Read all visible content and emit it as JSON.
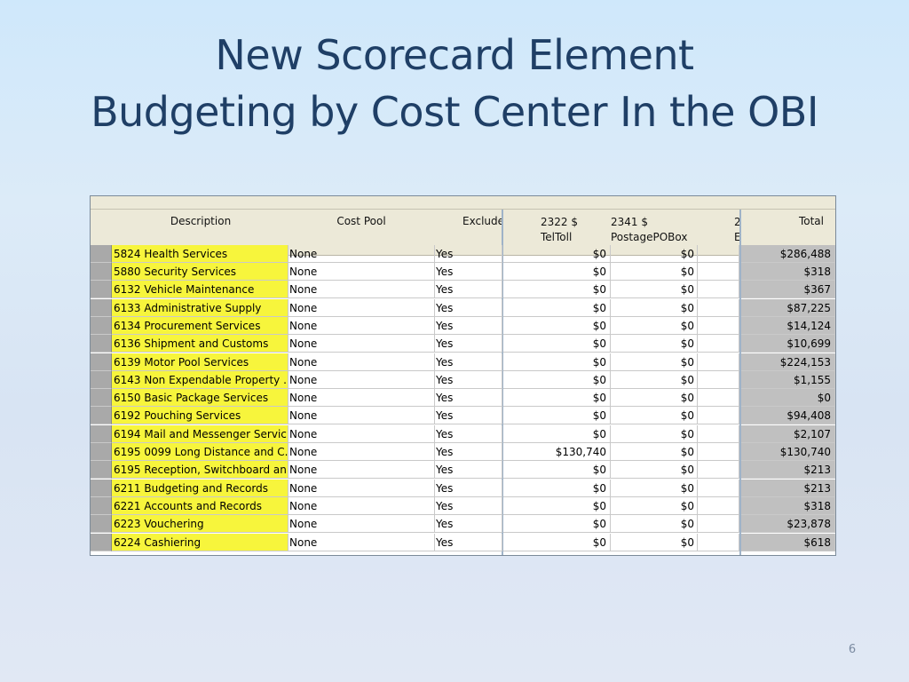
{
  "slide": {
    "title_line1": "New Scorecard Element",
    "title_line2": "Budgeting by Cost Center In the OBI",
    "page_number": "6"
  },
  "table": {
    "headers": {
      "description": "Description",
      "cost_pool": "Cost Pool",
      "exclude": "Exclude",
      "col_2322_line1": "2322 $",
      "col_2322_line2": "TelToll",
      "col_2341_line1": "2341 $",
      "col_2341_line2": "PostagePOBox",
      "col_truncated_line1": "2",
      "col_truncated_line2": "E",
      "total": "Total"
    },
    "partial_top_row": {
      "description": "5824 Health Services",
      "cost_pool": "None",
      "exclude": "Yes",
      "v1": "$0",
      "v2": "$0",
      "total": "$286,488"
    },
    "rows": [
      {
        "description": "5880 Security Services",
        "cost_pool": "None",
        "exclude": "Yes",
        "v1": "$0",
        "v2": "$0",
        "total": "$318"
      },
      {
        "description": "6132 Vehicle Maintenance",
        "cost_pool": "None",
        "exclude": "Yes",
        "v1": "$0",
        "v2": "$0",
        "total": "$367"
      },
      {
        "description": "6133 Administrative Supply",
        "cost_pool": "None",
        "exclude": "Yes",
        "v1": "$0",
        "v2": "$0",
        "total": "$87,225"
      },
      {
        "description": "6134 Procurement Services",
        "cost_pool": "None",
        "exclude": "Yes",
        "v1": "$0",
        "v2": "$0",
        "total": "$14,124"
      },
      {
        "description": "6136 Shipment and Customs",
        "cost_pool": "None",
        "exclude": "Yes",
        "v1": "$0",
        "v2": "$0",
        "total": "$10,699"
      },
      {
        "description": "6139 Motor Pool Services",
        "cost_pool": "None",
        "exclude": "Yes",
        "v1": "$0",
        "v2": "$0",
        "total": "$224,153"
      },
      {
        "description": "6143 Non Expendable Property ...",
        "cost_pool": "None",
        "exclude": "Yes",
        "v1": "$0",
        "v2": "$0",
        "total": "$1,155"
      },
      {
        "description": "6150 Basic Package Services",
        "cost_pool": "None",
        "exclude": "Yes",
        "v1": "$0",
        "v2": "$0",
        "total": "$0"
      },
      {
        "description": "6192 Pouching Services",
        "cost_pool": "None",
        "exclude": "Yes",
        "v1": "$0",
        "v2": "$0",
        "total": "$94,408"
      },
      {
        "description": "6194 Mail and Messenger Servic...",
        "cost_pool": "None",
        "exclude": "Yes",
        "v1": "$0",
        "v2": "$0",
        "total": "$2,107"
      },
      {
        "description": "6195 0099 Long Distance and C...",
        "cost_pool": "None",
        "exclude": "Yes",
        "v1": "$130,740",
        "v2": "$0",
        "total": "$130,740"
      },
      {
        "description": "6195 Reception, Switchboard an...",
        "cost_pool": "None",
        "exclude": "Yes",
        "v1": "$0",
        "v2": "$0",
        "total": "$213"
      },
      {
        "description": "6211 Budgeting and Records",
        "cost_pool": "None",
        "exclude": "Yes",
        "v1": "$0",
        "v2": "$0",
        "total": "$213"
      },
      {
        "description": "6221 Accounts and Records",
        "cost_pool": "None",
        "exclude": "Yes",
        "v1": "$0",
        "v2": "$0",
        "total": "$318"
      },
      {
        "description": "6223 Vouchering",
        "cost_pool": "None",
        "exclude": "Yes",
        "v1": "$0",
        "v2": "$0",
        "total": "$23,878"
      },
      {
        "description": "6224 Cashiering",
        "cost_pool": "None",
        "exclude": "Yes",
        "v1": "$0",
        "v2": "$0",
        "total": "$618"
      }
    ]
  }
}
